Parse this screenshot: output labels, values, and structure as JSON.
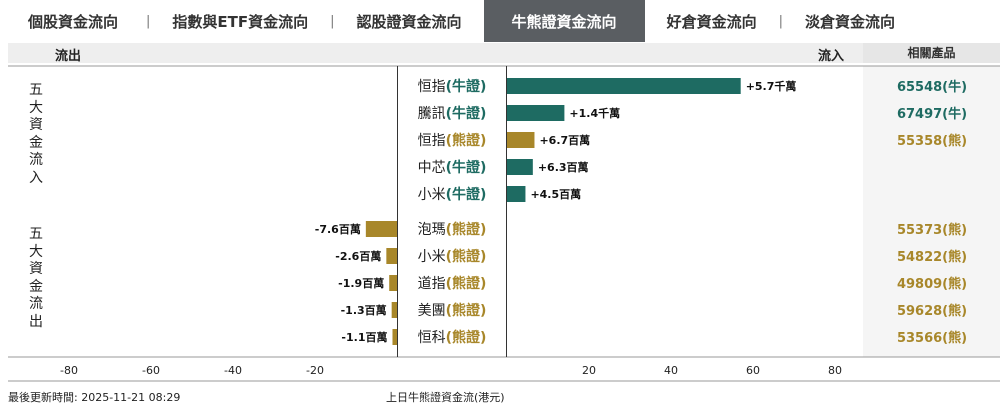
{
  "tabs": [
    {
      "label": "個股資金流向",
      "active": false
    },
    {
      "label": "指數與ETF資金流向",
      "active": false
    },
    {
      "label": "認股證資金流向",
      "active": false
    },
    {
      "label": "牛熊證資金流向",
      "active": true
    },
    {
      "label": "好倉資金流向",
      "active": false
    },
    {
      "label": "淡倉資金流向",
      "active": false
    }
  ],
  "tab_separator": "|",
  "header": {
    "outflow_label": "流出",
    "inflow_label": "流入",
    "related_label": "相關產品"
  },
  "groups": {
    "inflow_label": "五大資金流入",
    "outflow_label": "五大資金流出"
  },
  "colors": {
    "bull": "#1e6b62",
    "bear": "#a8872a",
    "tab_active": "#5a5e62"
  },
  "footer": {
    "updated": "最後更新時間: 2025-11-21 08:29",
    "caption": "上日牛熊證資金流(港元)"
  },
  "chart_data": {
    "type": "bar",
    "orientation": "horizontal",
    "xlim": [
      -90,
      90
    ],
    "ticks": [
      "-80",
      "-60",
      "-40",
      "-20",
      "20",
      "40",
      "60",
      "80"
    ],
    "tick_values": [
      -80,
      -60,
      -40,
      -20,
      20,
      40,
      60,
      80
    ],
    "bars": [
      {
        "name": "恒指",
        "kind": "(牛證)",
        "type": "bull",
        "value": 57,
        "label": "+5.7千萬",
        "product": "65548(牛)"
      },
      {
        "name": "騰訊",
        "kind": "(牛證)",
        "type": "bull",
        "value": 14,
        "label": "+1.4千萬",
        "product": "67497(牛)"
      },
      {
        "name": "恒指",
        "kind": "(熊證)",
        "type": "bear",
        "value": 6.7,
        "label": "+6.7百萬",
        "product": "55358(熊)"
      },
      {
        "name": "中芯",
        "kind": "(牛證)",
        "type": "bull",
        "value": 6.3,
        "label": "+6.3百萬",
        "product": ""
      },
      {
        "name": "小米",
        "kind": "(牛證)",
        "type": "bull",
        "value": 4.5,
        "label": "+4.5百萬",
        "product": ""
      },
      {
        "name": "泡瑪",
        "kind": "(熊證)",
        "type": "bear",
        "value": -7.6,
        "label": "-7.6百萬",
        "product": "55373(熊)"
      },
      {
        "name": "小米",
        "kind": "(熊證)",
        "type": "bear",
        "value": -2.6,
        "label": "-2.6百萬",
        "product": "54822(熊)"
      },
      {
        "name": "道指",
        "kind": "(熊證)",
        "type": "bear",
        "value": -1.9,
        "label": "-1.9百萬",
        "product": "49809(熊)"
      },
      {
        "name": "美團",
        "kind": "(熊證)",
        "type": "bear",
        "value": -1.3,
        "label": "-1.3百萬",
        "product": "59628(熊)"
      },
      {
        "name": "恒科",
        "kind": "(熊證)",
        "type": "bear",
        "value": -1.1,
        "label": "-1.1百萬",
        "product": "53566(熊)"
      }
    ]
  }
}
